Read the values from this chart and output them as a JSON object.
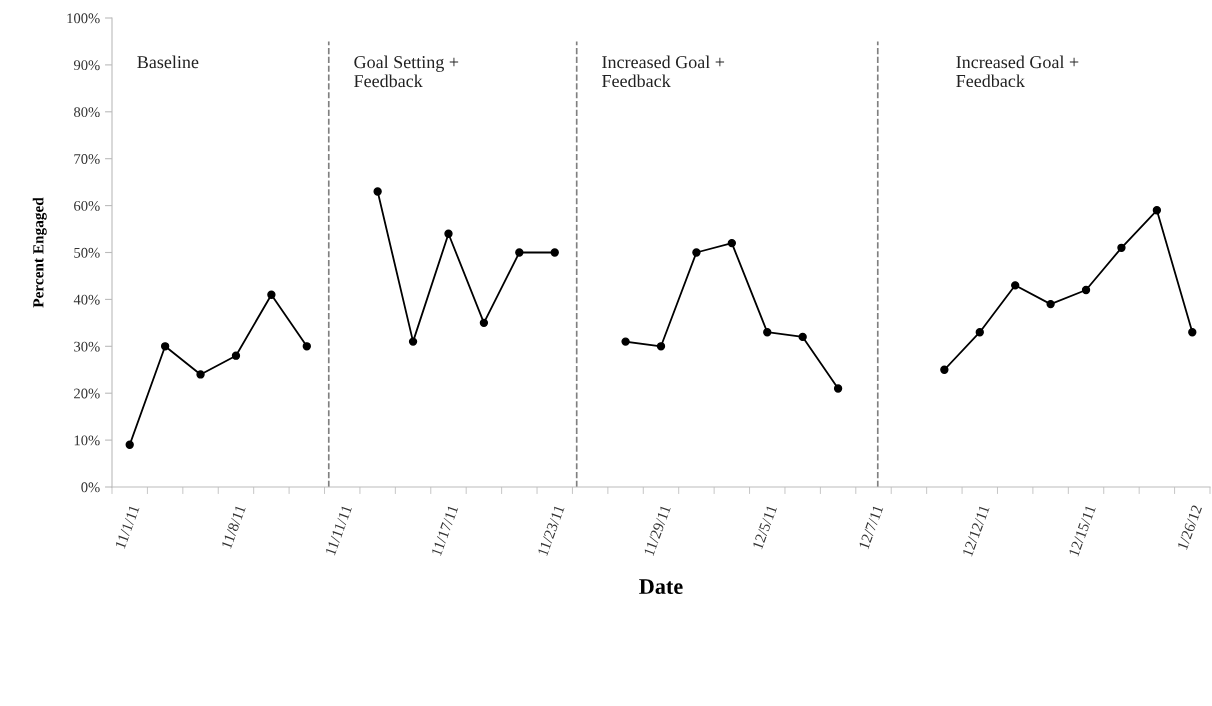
{
  "chart_data": {
    "type": "line",
    "xlabel": "Date",
    "ylabel": "Percent Engaged",
    "categories": [
      "11/1/11",
      null,
      null,
      "11/8/11",
      null,
      null,
      "11/11/11",
      null,
      null,
      "11/17/11",
      null,
      null,
      "11/23/11",
      null,
      null,
      "11/29/11",
      null,
      null,
      "12/5/11",
      null,
      null,
      "12/7/11",
      null,
      null,
      "12/12/11",
      null,
      null,
      "12/15/11",
      null,
      null,
      "1/26/12"
    ],
    "series": [
      {
        "color": "#000000",
        "values": [
          9,
          30,
          24,
          28,
          41,
          30,
          null,
          63,
          31,
          54,
          35,
          50,
          50,
          null,
          31,
          30,
          50,
          52,
          33,
          32,
          21,
          null,
          null,
          25,
          33,
          43,
          39,
          42,
          51,
          59,
          33
        ]
      }
    ],
    "ylim": [
      0,
      100
    ],
    "yticks": [
      {
        "value": 0,
        "label": "0%"
      },
      {
        "value": 10,
        "label": "10%"
      },
      {
        "value": 20,
        "label": "20%"
      },
      {
        "value": 30,
        "label": "30%"
      },
      {
        "value": 40,
        "label": "40%"
      },
      {
        "value": 50,
        "label": "50%"
      },
      {
        "value": 60,
        "label": "60%"
      },
      {
        "value": 70,
        "label": "70%"
      },
      {
        "value": 80,
        "label": "80%"
      },
      {
        "value": 90,
        "label": "90%"
      },
      {
        "value": 100,
        "label": "100%"
      }
    ],
    "annotations": [
      "Baseline",
      "Goal Setting +\nFeedback",
      "Increased Goal +\nFeedback",
      "Increased Goal +\nFeedback"
    ],
    "marker": "circle",
    "line_style": "solid",
    "grid": false,
    "legend": false
  }
}
